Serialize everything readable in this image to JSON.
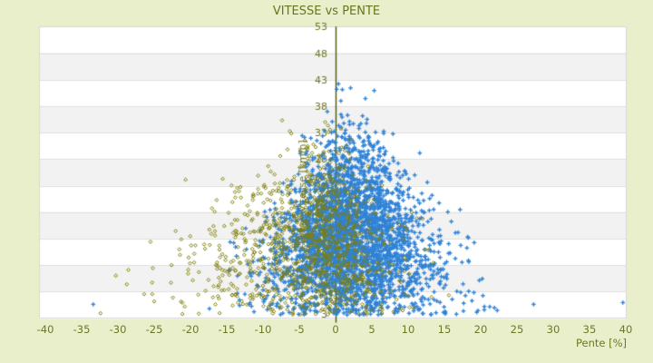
{
  "chart_data": {
    "type": "scatter",
    "title": "VITESSE vs PENTE",
    "xlabel": "Pente [%]",
    "ylabel": "Vitesse [km/h]",
    "xlim": [
      -40,
      40
    ],
    "ylim": [
      3,
      53
    ],
    "x_ticks": [
      -40,
      -35,
      -30,
      -25,
      -20,
      -15,
      -10,
      -5,
      0,
      5,
      10,
      15,
      20,
      25,
      30,
      35,
      40
    ],
    "y_ticks": [
      53,
      48,
      43,
      38,
      33,
      28,
      23,
      18,
      13,
      8,
      3
    ],
    "grid": "horizontal-alternating-bands",
    "legend": "none",
    "axis_line_at_x": 0,
    "series": [
      {
        "name": "vitesse-pente-blue",
        "color": "#2f82d6",
        "marker": "plus",
        "count": 3200,
        "seed": 1337,
        "cloud": {
          "y_mean": 15.5,
          "y_sd": 8.2,
          "y_min": 3.7,
          "y_max": 44.5,
          "x_center": 1.8,
          "x_spread": 13,
          "taper": 50,
          "min_halfwidth": 1.2,
          "pos_scale": 0.6,
          "neg_scale": 0.52
        },
        "outliers": [
          [
            -33.4,
            5.5
          ],
          [
            27.3,
            5.5
          ],
          [
            39.6,
            5.8
          ],
          [
            0.4,
            43.2
          ],
          [
            17.9,
            7.0
          ]
        ]
      },
      {
        "name": "vitesse-pente-olive",
        "color": "#7e7e08",
        "marker": "diamond",
        "count": 1150,
        "seed": 4242,
        "cloud": {
          "y_mean": 14.0,
          "y_sd": 8.0,
          "y_min": 3.7,
          "y_max": 38.5,
          "x_center": -2.8,
          "x_spread": 14,
          "taper": 50,
          "min_halfwidth": 1.5,
          "pos_scale": 0.5,
          "neg_scale": 0.75
        },
        "outliers": [
          [
            -25.0,
            6.0
          ],
          [
            -16.9,
            6.7
          ]
        ]
      }
    ]
  },
  "colors": {
    "background": "#e9efcb",
    "title_text": "#68761b",
    "tick_text": "#6d7824",
    "axis_line": "#4c5710",
    "band_light": "#ffffff",
    "band_dark": "#f2f2f2",
    "grid_line": "#e0e0e0",
    "plot_border": "#d8d8d8"
  }
}
